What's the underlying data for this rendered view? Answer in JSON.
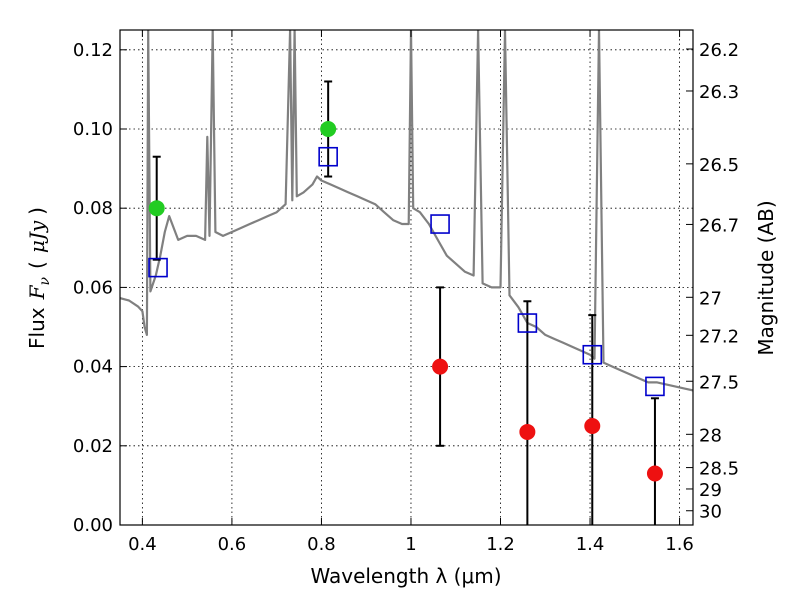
{
  "chart_data": {
    "type": "scatter",
    "xlabel": "Wavelength  λ (μm)",
    "ylabel": "Flux  F_ν  ( μJy )",
    "ylabel_parts": {
      "flux": "Flux",
      "symbol": "F",
      "subscript": "ν",
      "open": "(",
      "unit": "μJy",
      "close": ")"
    },
    "y2label": "Magnitude (AB)",
    "xlim": [
      0.35,
      1.63
    ],
    "ylim": [
      0.0,
      0.125
    ],
    "grid": true,
    "x_ticks": [
      {
        "value": 0.4,
        "label": "0.4"
      },
      {
        "value": 0.6,
        "label": "0.6"
      },
      {
        "value": 0.8,
        "label": "0.8"
      },
      {
        "value": 1.0,
        "label": "1"
      },
      {
        "value": 1.2,
        "label": "1.2"
      },
      {
        "value": 1.4,
        "label": "1.4"
      },
      {
        "value": 1.6,
        "label": "1.6"
      }
    ],
    "y_ticks": [
      {
        "value": 0.0,
        "label": "0.00"
      },
      {
        "value": 0.02,
        "label": "0.02"
      },
      {
        "value": 0.04,
        "label": "0.04"
      },
      {
        "value": 0.06,
        "label": "0.06"
      },
      {
        "value": 0.08,
        "label": "0.08"
      },
      {
        "value": 0.1,
        "label": "0.10"
      },
      {
        "value": 0.12,
        "label": "0.12"
      }
    ],
    "mag_ticks": [
      {
        "label": "26.2",
        "flux": 0.1202
      },
      {
        "label": "26.3",
        "flux": 0.1096
      },
      {
        "label": "26.5",
        "flux": 0.0912
      },
      {
        "label": "26.7",
        "flux": 0.0759
      },
      {
        "label": "27",
        "flux": 0.0575
      },
      {
        "label": "27.2",
        "flux": 0.0479
      },
      {
        "label": "27.5",
        "flux": 0.0363
      },
      {
        "label": "28",
        "flux": 0.0229
      },
      {
        "label": "28.5",
        "flux": 0.0145
      },
      {
        "label": "29",
        "flux": 0.0091
      },
      {
        "label": "30",
        "flux": 0.0036
      }
    ],
    "series": [
      {
        "kind": "spectrum",
        "color": "#808080",
        "points": [
          [
            0.35,
            0.0573
          ],
          [
            0.37,
            0.0567
          ],
          [
            0.39,
            0.0552
          ],
          [
            0.4,
            0.054
          ],
          [
            0.405,
            0.05
          ],
          [
            0.41,
            0.048
          ],
          [
            0.413,
            0.125
          ],
          [
            0.418,
            0.059
          ],
          [
            0.43,
            0.063
          ],
          [
            0.44,
            0.068
          ],
          [
            0.45,
            0.074
          ],
          [
            0.46,
            0.078
          ],
          [
            0.47,
            0.075
          ],
          [
            0.48,
            0.072
          ],
          [
            0.5,
            0.073
          ],
          [
            0.52,
            0.073
          ],
          [
            0.54,
            0.072
          ],
          [
            0.545,
            0.098
          ],
          [
            0.55,
            0.073
          ],
          [
            0.557,
            0.125
          ],
          [
            0.563,
            0.074
          ],
          [
            0.58,
            0.073
          ],
          [
            0.6,
            0.074
          ],
          [
            0.62,
            0.075
          ],
          [
            0.64,
            0.076
          ],
          [
            0.66,
            0.077
          ],
          [
            0.68,
            0.078
          ],
          [
            0.7,
            0.079
          ],
          [
            0.72,
            0.081
          ],
          [
            0.73,
            0.125
          ],
          [
            0.735,
            0.082
          ],
          [
            0.74,
            0.125
          ],
          [
            0.745,
            0.083
          ],
          [
            0.76,
            0.084
          ],
          [
            0.78,
            0.086
          ],
          [
            0.79,
            0.088
          ],
          [
            0.8,
            0.087
          ],
          [
            0.82,
            0.086
          ],
          [
            0.84,
            0.085
          ],
          [
            0.86,
            0.084
          ],
          [
            0.88,
            0.083
          ],
          [
            0.9,
            0.082
          ],
          [
            0.92,
            0.081
          ],
          [
            0.94,
            0.079
          ],
          [
            0.96,
            0.077
          ],
          [
            0.98,
            0.076
          ],
          [
            0.995,
            0.076
          ],
          [
            1.0,
            0.125
          ],
          [
            1.005,
            0.08
          ],
          [
            1.02,
            0.079
          ],
          [
            1.04,
            0.076
          ],
          [
            1.06,
            0.072
          ],
          [
            1.08,
            0.068
          ],
          [
            1.1,
            0.066
          ],
          [
            1.12,
            0.064
          ],
          [
            1.14,
            0.063
          ],
          [
            1.15,
            0.125
          ],
          [
            1.16,
            0.061
          ],
          [
            1.18,
            0.06
          ],
          [
            1.2,
            0.06
          ],
          [
            1.21,
            0.125
          ],
          [
            1.22,
            0.058
          ],
          [
            1.24,
            0.055
          ],
          [
            1.26,
            0.051
          ],
          [
            1.28,
            0.05
          ],
          [
            1.3,
            0.048
          ],
          [
            1.32,
            0.047
          ],
          [
            1.34,
            0.046
          ],
          [
            1.36,
            0.045
          ],
          [
            1.38,
            0.044
          ],
          [
            1.4,
            0.043
          ],
          [
            1.41,
            0.042
          ],
          [
            1.42,
            0.125
          ],
          [
            1.43,
            0.041
          ],
          [
            1.45,
            0.04
          ],
          [
            1.47,
            0.039
          ],
          [
            1.49,
            0.038
          ],
          [
            1.51,
            0.037
          ],
          [
            1.53,
            0.036
          ],
          [
            1.55,
            0.036
          ],
          [
            1.57,
            0.0355
          ],
          [
            1.59,
            0.035
          ],
          [
            1.61,
            0.0345
          ],
          [
            1.63,
            0.034
          ]
        ]
      },
      {
        "kind": "model_photometry",
        "marker": "open-square",
        "color": "#0000cc",
        "points": [
          [
            0.435,
            0.065
          ],
          [
            0.815,
            0.093
          ],
          [
            1.065,
            0.076
          ],
          [
            1.26,
            0.051
          ],
          [
            1.405,
            0.043
          ],
          [
            1.545,
            0.035
          ]
        ]
      },
      {
        "kind": "observed_green",
        "marker": "filled-circle",
        "color": "#22cc22",
        "points": [
          [
            0.432,
            0.08,
            0.013
          ],
          [
            0.815,
            0.1,
            0.012
          ]
        ]
      },
      {
        "kind": "observed_red",
        "marker": "filled-circle",
        "color": "#ee1111",
        "points": [
          [
            1.065,
            0.04,
            0.02
          ],
          [
            1.26,
            0.0235,
            0.033
          ],
          [
            1.405,
            0.025,
            0.028
          ],
          [
            1.545,
            0.013,
            0.019
          ]
        ]
      }
    ]
  }
}
